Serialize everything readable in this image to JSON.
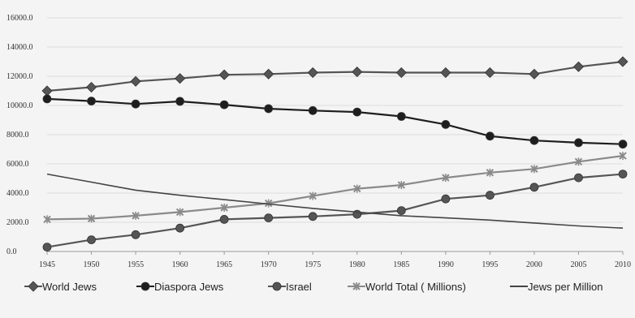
{
  "chart_data": {
    "type": "line",
    "title": "",
    "xlabel": "",
    "ylabel": "",
    "x": [
      1945,
      1950,
      1955,
      1960,
      1965,
      1970,
      1975,
      1980,
      1985,
      1990,
      1995,
      2000,
      2005,
      2010
    ],
    "ylim": [
      0,
      16000
    ],
    "y_ticks": [
      "0.0",
      "2000.0",
      "4000.0",
      "6000.0",
      "8000.0",
      "10000.0",
      "12000.0",
      "14000.0",
      "16000.0"
    ],
    "y_tick_values": [
      0,
      2000,
      4000,
      6000,
      8000,
      10000,
      12000,
      14000,
      16000
    ],
    "grid": true,
    "legend_position": "bottom",
    "series": [
      {
        "name": "World Jews",
        "color": "#555555",
        "marker": "diamond",
        "values": [
          11000,
          11250,
          11650,
          11850,
          12100,
          12150,
          12250,
          12300,
          12250,
          12250,
          12250,
          12150,
          12650,
          13000
        ]
      },
      {
        "name": "Diaspora Jews",
        "color": "#1e1e1e",
        "marker": "circle",
        "values": [
          10450,
          10300,
          10100,
          10280,
          10050,
          9780,
          9650,
          9550,
          9250,
          8700,
          7900,
          7600,
          7450,
          7350
        ]
      },
      {
        "name": "Israel",
        "color": "#555555",
        "marker": "circle",
        "values": [
          300,
          800,
          1150,
          1600,
          2200,
          2300,
          2400,
          2550,
          2800,
          3600,
          3850,
          4400,
          5050,
          5300
        ]
      },
      {
        "name": "World Total ( Millions)",
        "color": "#8a8a8a",
        "marker": "star",
        "values": [
          2200,
          2250,
          2450,
          2700,
          3000,
          3300,
          3800,
          4300,
          4550,
          5050,
          5400,
          5650,
          6150,
          6550
        ]
      },
      {
        "name": "Jews per Million",
        "color": "#444444",
        "marker": "line",
        "values": [
          5300,
          4750,
          4200,
          3850,
          3550,
          3250,
          2950,
          2700,
          2450,
          2300,
          2150,
          1950,
          1750,
          1600
        ]
      }
    ]
  }
}
